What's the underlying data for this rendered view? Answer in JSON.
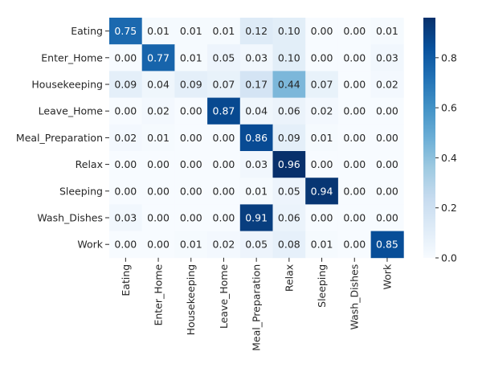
{
  "chart_data": {
    "type": "heatmap",
    "row_labels": [
      "Eating",
      "Enter_Home",
      "Housekeeping",
      "Leave_Home",
      "Meal_Preparation",
      "Relax",
      "Sleeping",
      "Wash_Dishes",
      "Work"
    ],
    "col_labels": [
      "Eating",
      "Enter_Home",
      "Housekeeping",
      "Leave_Home",
      "Meal_Preparation",
      "Relax",
      "Sleeping",
      "Wash_Dishes",
      "Work"
    ],
    "values": [
      [
        0.75,
        0.01,
        0.01,
        0.01,
        0.12,
        0.1,
        0.0,
        0.0,
        0.01
      ],
      [
        0.0,
        0.77,
        0.01,
        0.05,
        0.03,
        0.1,
        0.0,
        0.0,
        0.03
      ],
      [
        0.09,
        0.04,
        0.09,
        0.07,
        0.17,
        0.44,
        0.07,
        0.0,
        0.02
      ],
      [
        0.0,
        0.02,
        0.0,
        0.87,
        0.04,
        0.06,
        0.02,
        0.0,
        0.0
      ],
      [
        0.02,
        0.01,
        0.0,
        0.0,
        0.86,
        0.09,
        0.01,
        0.0,
        0.0
      ],
      [
        0.0,
        0.0,
        0.0,
        0.0,
        0.03,
        0.96,
        0.0,
        0.0,
        0.0
      ],
      [
        0.0,
        0.0,
        0.0,
        0.0,
        0.01,
        0.05,
        0.94,
        0.0,
        0.0
      ],
      [
        0.03,
        0.0,
        0.0,
        0.0,
        0.91,
        0.06,
        0.0,
        0.0,
        0.0
      ],
      [
        0.0,
        0.0,
        0.01,
        0.02,
        0.05,
        0.08,
        0.01,
        0.0,
        0.85
      ]
    ],
    "value_format_decimals": 2,
    "colormap": "Blues",
    "colormap_stops": [
      "#f7fbff",
      "#deebf7",
      "#c6dbef",
      "#9ecae1",
      "#6baed6",
      "#4292c6",
      "#2171b5",
      "#08519c",
      "#08306b"
    ],
    "vmin": 0.0,
    "vmax": 0.96,
    "colorbar": {
      "ticks": [
        0.0,
        0.2,
        0.4,
        0.6,
        0.8
      ],
      "tick_labels": [
        "0.0",
        "0.2",
        "0.4",
        "0.6",
        "0.8"
      ]
    },
    "title": "",
    "xlabel": "",
    "ylabel": "",
    "text_color_dark": "#262626",
    "text_color_light": "#ffffff"
  }
}
